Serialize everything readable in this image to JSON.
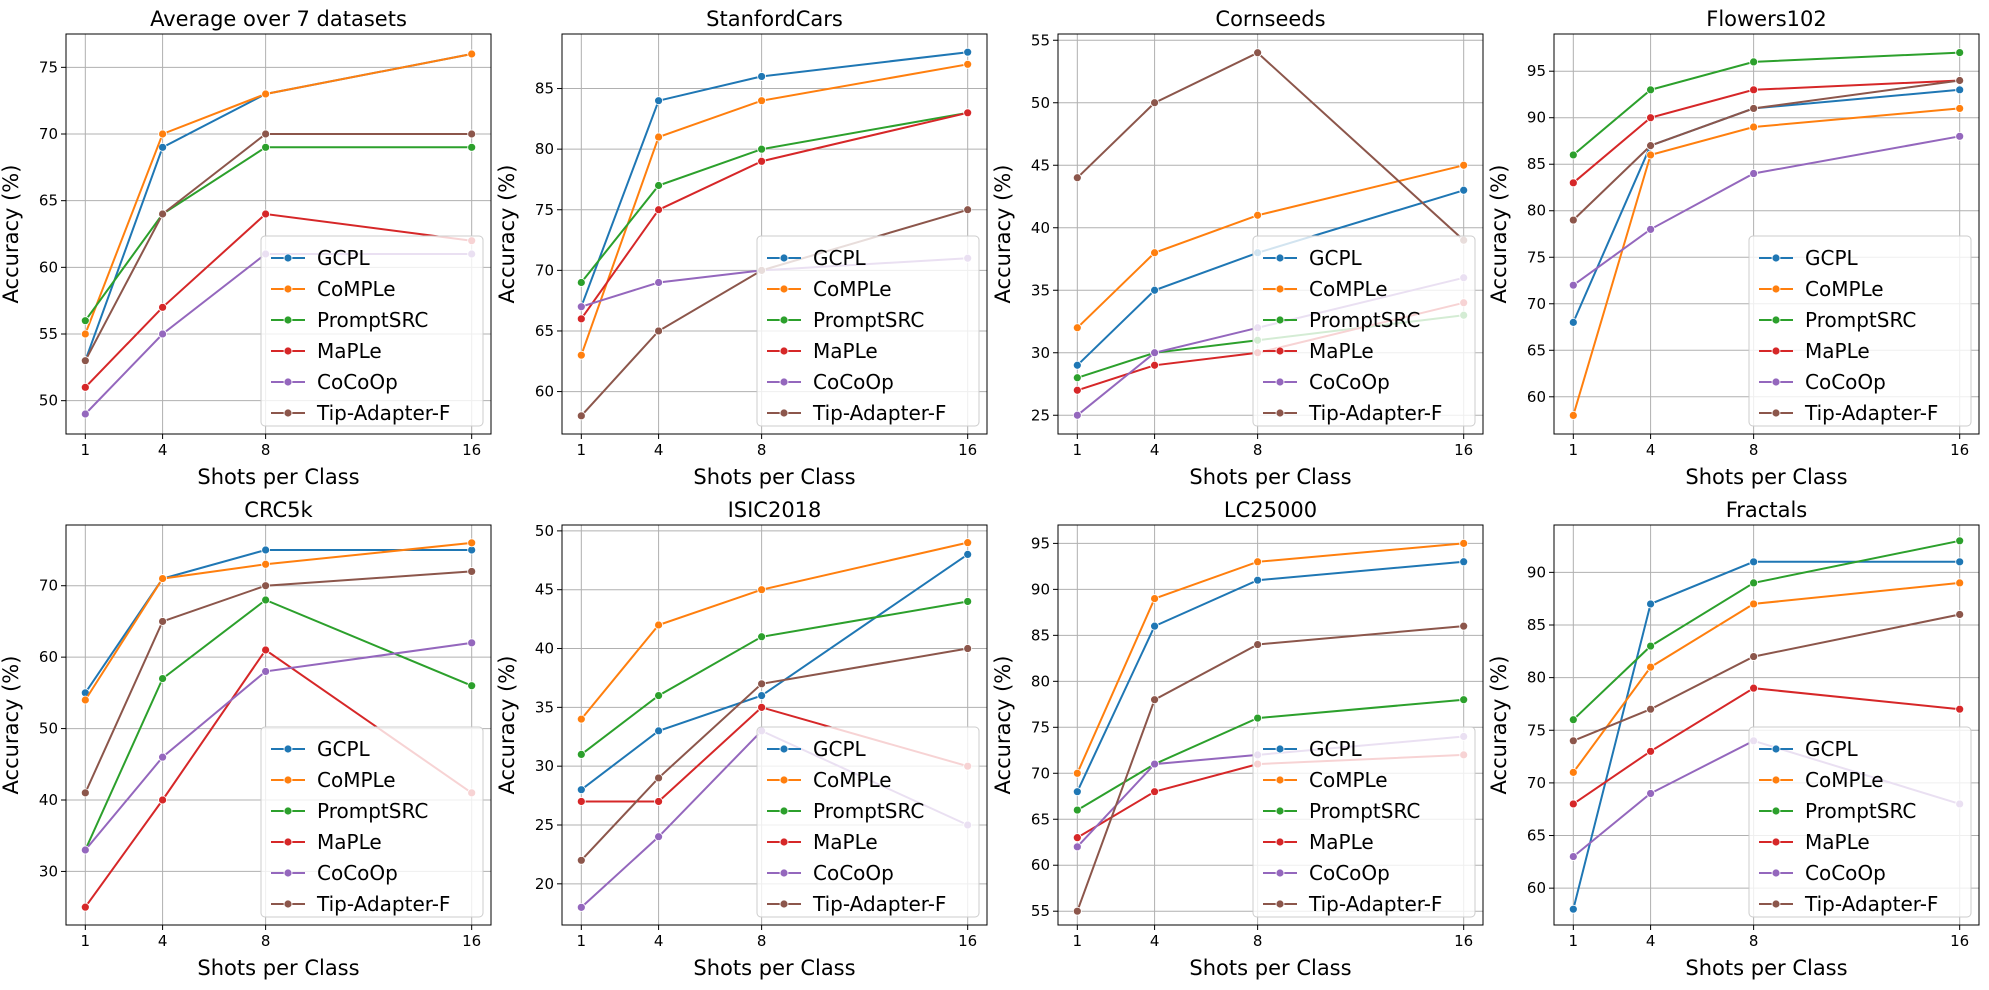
{
  "figure": {
    "legend_location": "lower-right",
    "grid": true,
    "colors": {
      "GCPL": "#1f77b4",
      "CoMPLe": "#ff7f0e",
      "PromptSRC": "#2ca02c",
      "MaPLe": "#d62728",
      "CoCoOp": "#9467bd",
      "Tip-Adapter-F": "#8c564b"
    }
  },
  "chart_data": [
    {
      "type": "line",
      "title": "Average over 7 datasets",
      "xlabel": "Shots per Class",
      "ylabel": "Accuracy (%)",
      "x": [
        1,
        4,
        8,
        16
      ],
      "xlim": [
        0.25,
        16.75
      ],
      "ylim": [
        47.5,
        77.5
      ],
      "yticks": [
        50,
        55,
        60,
        65,
        70,
        75
      ],
      "legend_loc": "lower-right",
      "series": [
        {
          "name": "GCPL",
          "values": [
            53,
            69,
            73,
            76
          ]
        },
        {
          "name": "CoMPLe",
          "values": [
            55,
            70,
            73,
            76
          ]
        },
        {
          "name": "PromptSRC",
          "values": [
            56,
            64,
            69,
            69
          ]
        },
        {
          "name": "MaPLe",
          "values": [
            51,
            57,
            64,
            62
          ]
        },
        {
          "name": "CoCoOp",
          "values": [
            49,
            55,
            61,
            61
          ]
        },
        {
          "name": "Tip-Adapter-F",
          "values": [
            53,
            64,
            70,
            70
          ]
        }
      ]
    },
    {
      "type": "line",
      "title": "StanfordCars",
      "xlabel": "Shots per Class",
      "ylabel": "Accuracy (%)",
      "x": [
        1,
        4,
        8,
        16
      ],
      "xlim": [
        0.25,
        16.75
      ],
      "ylim": [
        56.5,
        89.5
      ],
      "yticks": [
        60,
        65,
        70,
        75,
        80,
        85
      ],
      "legend_loc": "lower-right",
      "series": [
        {
          "name": "GCPL",
          "values": [
            67,
            84,
            86,
            88
          ]
        },
        {
          "name": "CoMPLe",
          "values": [
            63,
            81,
            84,
            87
          ]
        },
        {
          "name": "PromptSRC",
          "values": [
            69,
            77,
            80,
            83
          ]
        },
        {
          "name": "MaPLe",
          "values": [
            66,
            75,
            79,
            83
          ]
        },
        {
          "name": "CoCoOp",
          "values": [
            67,
            69,
            70,
            71
          ]
        },
        {
          "name": "Tip-Adapter-F",
          "values": [
            58,
            65,
            70,
            75
          ]
        }
      ]
    },
    {
      "type": "line",
      "title": "Cornseeds",
      "xlabel": "Shots per Class",
      "ylabel": "Accuracy (%)",
      "x": [
        1,
        4,
        8,
        16
      ],
      "xlim": [
        0.25,
        16.75
      ],
      "ylim": [
        23.5,
        55.5
      ],
      "yticks": [
        25,
        30,
        35,
        40,
        45,
        50,
        55
      ],
      "legend_loc": "lower-right",
      "series": [
        {
          "name": "GCPL",
          "values": [
            29,
            35,
            38,
            43
          ]
        },
        {
          "name": "CoMPLe",
          "values": [
            32,
            38,
            41,
            45
          ]
        },
        {
          "name": "PromptSRC",
          "values": [
            28,
            30,
            31,
            33
          ]
        },
        {
          "name": "MaPLe",
          "values": [
            27,
            29,
            30,
            34
          ]
        },
        {
          "name": "CoCoOp",
          "values": [
            25,
            30,
            32,
            36
          ]
        },
        {
          "name": "Tip-Adapter-F",
          "values": [
            44,
            50,
            54,
            39
          ]
        }
      ]
    },
    {
      "type": "line",
      "title": "Flowers102",
      "xlabel": "Shots per Class",
      "ylabel": "Accuracy (%)",
      "x": [
        1,
        4,
        8,
        16
      ],
      "xlim": [
        0.25,
        16.75
      ],
      "ylim": [
        56,
        99
      ],
      "yticks": [
        60,
        65,
        70,
        75,
        80,
        85,
        90,
        95
      ],
      "legend_loc": "lower-right",
      "series": [
        {
          "name": "GCPL",
          "values": [
            68,
            87,
            91,
            93
          ]
        },
        {
          "name": "CoMPLe",
          "values": [
            58,
            86,
            89,
            91
          ]
        },
        {
          "name": "PromptSRC",
          "values": [
            86,
            93,
            96,
            97
          ]
        },
        {
          "name": "MaPLe",
          "values": [
            83,
            90,
            93,
            94
          ]
        },
        {
          "name": "CoCoOp",
          "values": [
            72,
            78,
            84,
            88
          ]
        },
        {
          "name": "Tip-Adapter-F",
          "values": [
            79,
            87,
            91,
            94
          ]
        }
      ]
    },
    {
      "type": "line",
      "title": "CRC5k",
      "xlabel": "Shots per Class",
      "ylabel": "Accuracy (%)",
      "x": [
        1,
        4,
        8,
        16
      ],
      "xlim": [
        0.25,
        16.75
      ],
      "ylim": [
        22.5,
        78.5
      ],
      "yticks": [
        30,
        40,
        50,
        60,
        70
      ],
      "legend_loc": "lower-right",
      "series": [
        {
          "name": "GCPL",
          "values": [
            55,
            71,
            75,
            75
          ]
        },
        {
          "name": "CoMPLe",
          "values": [
            54,
            71,
            73,
            76
          ]
        },
        {
          "name": "PromptSRC",
          "values": [
            33,
            57,
            68,
            56
          ]
        },
        {
          "name": "MaPLe",
          "values": [
            25,
            40,
            61,
            41
          ]
        },
        {
          "name": "CoCoOp",
          "values": [
            33,
            46,
            58,
            62
          ]
        },
        {
          "name": "Tip-Adapter-F",
          "values": [
            41,
            65,
            70,
            72
          ]
        }
      ]
    },
    {
      "type": "line",
      "title": "ISIC2018",
      "xlabel": "Shots per Class",
      "ylabel": "Accuracy (%)",
      "x": [
        1,
        4,
        8,
        16
      ],
      "xlim": [
        0.25,
        16.75
      ],
      "ylim": [
        16.5,
        50.5
      ],
      "yticks": [
        20,
        25,
        30,
        35,
        40,
        45,
        50
      ],
      "legend_loc": "lower-right",
      "series": [
        {
          "name": "GCPL",
          "values": [
            28,
            33,
            36,
            48
          ]
        },
        {
          "name": "CoMPLe",
          "values": [
            34,
            42,
            45,
            49
          ]
        },
        {
          "name": "PromptSRC",
          "values": [
            31,
            36,
            41,
            44
          ]
        },
        {
          "name": "MaPLe",
          "values": [
            27,
            27,
            35,
            30
          ]
        },
        {
          "name": "CoCoOp",
          "values": [
            18,
            24,
            33,
            25
          ]
        },
        {
          "name": "Tip-Adapter-F",
          "values": [
            22,
            29,
            37,
            40
          ]
        }
      ]
    },
    {
      "type": "line",
      "title": "LC25000",
      "xlabel": "Shots per Class",
      "ylabel": "Accuracy (%)",
      "x": [
        1,
        4,
        8,
        16
      ],
      "xlim": [
        0.25,
        16.75
      ],
      "ylim": [
        53.5,
        97
      ],
      "yticks": [
        55,
        60,
        65,
        70,
        75,
        80,
        85,
        90,
        95
      ],
      "legend_loc": "lower-right",
      "series": [
        {
          "name": "GCPL",
          "values": [
            68,
            86,
            91,
            93
          ]
        },
        {
          "name": "CoMPLe",
          "values": [
            70,
            89,
            93,
            95
          ]
        },
        {
          "name": "PromptSRC",
          "values": [
            66,
            71,
            76,
            78
          ]
        },
        {
          "name": "MaPLe",
          "values": [
            63,
            68,
            71,
            72
          ]
        },
        {
          "name": "CoCoOp",
          "values": [
            62,
            71,
            72,
            74
          ]
        },
        {
          "name": "Tip-Adapter-F",
          "values": [
            55,
            78,
            84,
            86
          ]
        }
      ]
    },
    {
      "type": "line",
      "title": "Fractals",
      "xlabel": "Shots per Class",
      "ylabel": "Accuracy (%)",
      "x": [
        1,
        4,
        8,
        16
      ],
      "xlim": [
        0.25,
        16.75
      ],
      "ylim": [
        56.5,
        94.5
      ],
      "yticks": [
        60,
        65,
        70,
        75,
        80,
        85,
        90
      ],
      "legend_loc": "lower-right",
      "series": [
        {
          "name": "GCPL",
          "values": [
            58,
            87,
            91,
            91
          ]
        },
        {
          "name": "CoMPLe",
          "values": [
            71,
            81,
            87,
            89
          ]
        },
        {
          "name": "PromptSRC",
          "values": [
            76,
            83,
            89,
            93
          ]
        },
        {
          "name": "MaPLe",
          "values": [
            68,
            73,
            79,
            77
          ]
        },
        {
          "name": "CoCoOp",
          "values": [
            63,
            69,
            74,
            68
          ]
        },
        {
          "name": "Tip-Adapter-F",
          "values": [
            74,
            77,
            82,
            86
          ]
        }
      ]
    }
  ]
}
